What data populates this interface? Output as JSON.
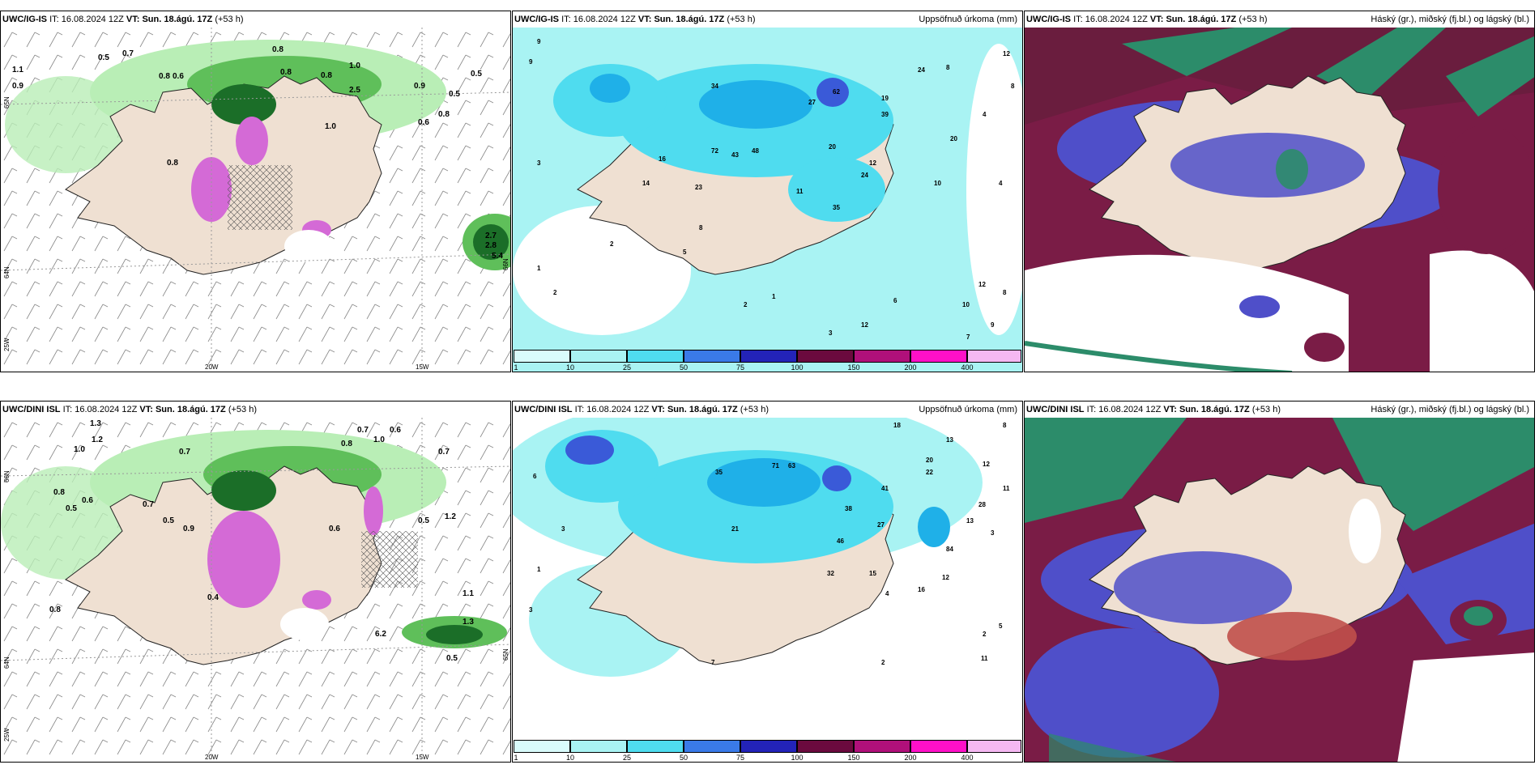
{
  "panels": [
    {
      "model": "UWC/IG-IS",
      "it_label": "IT:",
      "it_value": "16.08.2024 12Z",
      "vt_label": "VT:",
      "vt_value": "Sun. 18.ágú. 17Z",
      "lead": "(+53 h)",
      "title": "",
      "values": [
        "1.1",
        "0.9",
        "0.5",
        "0.7",
        "0.8",
        "0.6",
        "0.8",
        "0.8",
        "1.0",
        "0.8",
        "0.5",
        "0.9",
        "0.5",
        "2.5",
        "1.0",
        "0.8",
        "2.7",
        "2.8",
        "5.4",
        "0.6",
        "0.8"
      ],
      "axis": [
        "20W",
        "15W",
        "65N",
        "64N",
        "25W",
        "66N"
      ]
    },
    {
      "model": "UWC/IG-IS",
      "it_label": "IT:",
      "it_value": "16.08.2024 12Z",
      "vt_label": "VT:",
      "vt_value": "Sun. 18.ágú. 17Z",
      "lead": "(+53 h)",
      "title": "Uppsöfnuð úrkoma (mm)",
      "values": [
        "9",
        "9",
        "12",
        "24",
        "8",
        "8",
        "34",
        "62",
        "27",
        "19",
        "39",
        "4",
        "16",
        "72",
        "43",
        "48",
        "20",
        "12",
        "20",
        "4",
        "24",
        "11",
        "14",
        "35",
        "8",
        "23",
        "10",
        "2",
        "5",
        "3",
        "1",
        "2",
        "8",
        "12",
        "10",
        "9",
        "6",
        "12",
        "3",
        "2",
        "1",
        "7"
      ],
      "colorbar": [
        "1",
        "10",
        "25",
        "50",
        "75",
        "100",
        "150",
        "200",
        "400"
      ]
    },
    {
      "model": "UWC/IG-IS",
      "it_label": "IT:",
      "it_value": "16.08.2024 12Z",
      "vt_label": "VT:",
      "vt_value": "Sun. 18.ágú. 17Z",
      "lead": "(+53 h)",
      "title": "Háský (gr.), miðský (fj.bl.) og lágský (bl.)"
    },
    {
      "model": "UWC/DINI ISL",
      "it_label": "IT:",
      "it_value": "16.08.2024 12Z",
      "vt_label": "VT:",
      "vt_value": "Sun. 18.ágú. 17Z",
      "lead": "(+53 h)",
      "title": "",
      "values": [
        "1.3",
        "1.2",
        "1.0",
        "0.7",
        "0.6",
        "0.8",
        "0.6",
        "0.7",
        "0.5",
        "0.9",
        "0.8",
        "0.7",
        "1.0",
        "0.6",
        "0.7",
        "1.2",
        "0.5",
        "1.1",
        "6.2",
        "1.3",
        "0.5",
        "0.8",
        "0.5",
        "0.4"
      ],
      "axis": [
        "20W",
        "15W",
        "66N",
        "64N",
        "25W",
        "65N"
      ]
    },
    {
      "model": "UWC/DINI ISL",
      "it_label": "IT:",
      "it_value": "16.08.2024 12Z",
      "vt_label": "VT:",
      "vt_value": "Sun. 18.ágú. 17Z",
      "lead": "(+53 h)",
      "title": "Uppsöfnuð úrkoma (mm)",
      "values": [
        "18",
        "13",
        "8",
        "6",
        "35",
        "71",
        "63",
        "20",
        "41",
        "22",
        "11",
        "12",
        "38",
        "27",
        "13",
        "84",
        "28",
        "46",
        "3",
        "21",
        "32",
        "15",
        "16",
        "12",
        "4",
        "3",
        "1",
        "5",
        "7",
        "2",
        "11",
        "2",
        "3"
      ],
      "colorbar": [
        "1",
        "10",
        "25",
        "50",
        "75",
        "100",
        "150",
        "200",
        "400"
      ]
    },
    {
      "model": "UWC/DINI ISL",
      "it_label": "IT:",
      "it_value": "16.08.2024 12Z",
      "vt_label": "VT:",
      "vt_value": "Sun. 18.ágú. 17Z",
      "lead": "(+53 h)",
      "title": "Háský (gr.), miðský (fj.bl.) og lágský (bl.)"
    }
  ],
  "colors": {
    "land": "#efe0d2",
    "precip_light": "#a9f3f3",
    "precip_mid": "#4fdcef",
    "precip_high": "#1fb0e8",
    "precip_heavy": "#3a5ad8",
    "cloud_high": "#2c8c6a",
    "cloud_mid": "#7a1c46",
    "cloud_low": "#4f4fc9",
    "green_light": "#b9eeb6",
    "green_dark": "#1b6e28",
    "magenta": "#d46ad6"
  }
}
